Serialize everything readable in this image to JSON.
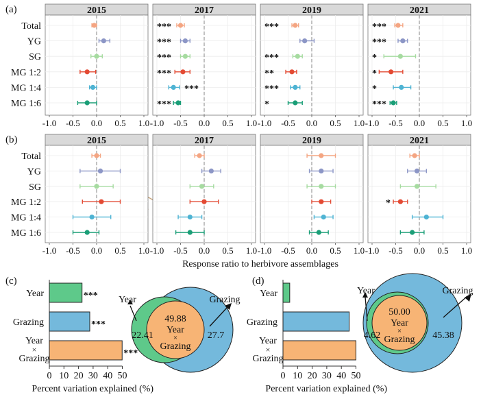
{
  "chart_data": {
    "type": "forest",
    "years": [
      "2015",
      "2017",
      "2019",
      "2021"
    ],
    "treatments": [
      "Total",
      "YG",
      "SG",
      "MG 1:2",
      "MG 1:4",
      "MG 1:6"
    ],
    "colors": [
      "#f4a582",
      "#8c96c6",
      "#a6dba0",
      "#e34a33",
      "#4eb3d3",
      "#1a9e77"
    ],
    "xlim": [
      -1.0,
      1.0
    ],
    "xticks": [
      "-1.0",
      "-0.5",
      "0.0",
      "0.5",
      "1.0"
    ],
    "xlabel": "Response ratio to herbivore assemblages",
    "panel_a": {
      "label": "(a)",
      "estimates": {
        "2015": [
          [
            -0.05,
            -0.1,
            0.0
          ],
          [
            0.15,
            0.05,
            0.28
          ],
          [
            0.0,
            -0.12,
            0.12
          ],
          [
            -0.2,
            -0.35,
            -0.02
          ],
          [
            -0.08,
            -0.15,
            0.0
          ],
          [
            -0.2,
            -0.4,
            0.0
          ]
        ],
        "2017": [
          [
            -0.5,
            -0.58,
            -0.42
          ],
          [
            -0.4,
            -0.5,
            -0.3
          ],
          [
            -0.4,
            -0.5,
            -0.3
          ],
          [
            -0.45,
            -0.62,
            -0.3
          ],
          [
            -0.65,
            -0.75,
            -0.52
          ],
          [
            -0.55,
            -0.65,
            -0.5
          ]
        ],
        "2019": [
          [
            -0.35,
            -0.42,
            -0.28
          ],
          [
            -0.15,
            -0.25,
            0.05
          ],
          [
            -0.3,
            -0.4,
            -0.2
          ],
          [
            -0.42,
            -0.55,
            -0.32
          ],
          [
            -0.35,
            -0.45,
            -0.25
          ],
          [
            -0.35,
            -0.5,
            -0.2
          ]
        ],
        "2021": [
          [
            -0.45,
            -0.52,
            -0.35
          ],
          [
            -0.35,
            -0.45,
            -0.25
          ],
          [
            -0.4,
            -0.75,
            -0.08
          ],
          [
            -0.6,
            -0.85,
            -0.35
          ],
          [
            -0.38,
            -0.55,
            -0.18
          ],
          [
            -0.55,
            -0.62,
            -0.48
          ]
        ]
      },
      "significance": {
        "2015": [
          "",
          "",
          "",
          "",
          "",
          ""
        ],
        "2017": [
          "***",
          "***",
          "***",
          "***",
          "***",
          "***"
        ],
        "2019": [
          "***",
          "",
          "***",
          "**",
          "***",
          "*"
        ],
        "2021": [
          "***",
          "***",
          "*",
          "*",
          "*",
          "***"
        ]
      }
    },
    "panel_b": {
      "label": "(b)",
      "estimates": {
        "2015": [
          [
            0.0,
            -0.1,
            0.08
          ],
          [
            0.08,
            -0.35,
            0.5
          ],
          [
            0.0,
            -0.35,
            0.35
          ],
          [
            0.1,
            -0.3,
            0.5
          ],
          [
            -0.1,
            -0.5,
            0.3
          ],
          [
            -0.2,
            -0.5,
            0.05
          ]
        ],
        "2017": [
          [
            -0.1,
            -0.2,
            0.0
          ],
          [
            0.15,
            -0.05,
            0.35
          ],
          [
            -0.05,
            -0.3,
            0.2
          ],
          [
            0.0,
            -0.3,
            0.3
          ],
          [
            -0.3,
            -0.55,
            -0.05
          ],
          [
            -0.3,
            -0.6,
            0.0
          ]
        ],
        "2019": [
          [
            0.2,
            -0.1,
            0.5
          ],
          [
            0.2,
            -0.05,
            0.45
          ],
          [
            0.2,
            -0.1,
            0.5
          ],
          [
            0.2,
            0.0,
            0.4
          ],
          [
            0.25,
            0.05,
            0.45
          ],
          [
            0.15,
            -0.05,
            0.35
          ]
        ],
        "2021": [
          [
            -0.1,
            -0.2,
            0.0
          ],
          [
            -0.05,
            -0.25,
            0.15
          ],
          [
            -0.05,
            -0.4,
            0.35
          ],
          [
            -0.4,
            -0.55,
            -0.25
          ],
          [
            0.15,
            -0.15,
            0.5
          ],
          [
            -0.15,
            -0.4,
            0.1
          ]
        ]
      },
      "significance": {
        "2015": [
          "",
          "",
          "",
          "",
          "",
          ""
        ],
        "2017": [
          "",
          "",
          "",
          "",
          "",
          ""
        ],
        "2019": [
          "",
          "",
          "",
          "",
          "",
          ""
        ],
        "2021": [
          "",
          "",
          "",
          "*",
          "",
          ""
        ]
      }
    },
    "panel_c": {
      "label": "(c)",
      "categories": [
        "Year",
        "Grazing",
        "Year × Grazing"
      ],
      "values": [
        22.41,
        27.7,
        49.88
      ],
      "significance": [
        "***",
        "***",
        "***"
      ],
      "bar_colors": [
        "#5ec98a",
        "#74b9dc",
        "#f7b475"
      ],
      "xticks": [
        "0",
        "10",
        "20",
        "30",
        "40",
        "50"
      ],
      "xlim": [
        0,
        50
      ],
      "xlabel": "Percent variation explained (%)",
      "venn": {
        "year": "22.41",
        "grazing": "27.7",
        "both": "49.88",
        "year_label": "Year",
        "grazing_label": "Grazing",
        "both_label": "Year × Grazing"
      }
    },
    "panel_d": {
      "label": "(d)",
      "categories": [
        "Year",
        "Grazing",
        "Year × Grazing"
      ],
      "values": [
        4.62,
        45.38,
        50.0
      ],
      "significance": [
        "",
        "",
        ""
      ],
      "bar_colors": [
        "#5ec98a",
        "#74b9dc",
        "#f7b475"
      ],
      "xticks": [
        "0",
        "10",
        "20",
        "30",
        "40",
        "50"
      ],
      "xlim": [
        0,
        50
      ],
      "xlabel": "Percent variation explained (%)",
      "venn": {
        "year": "4.62",
        "grazing": "45.38",
        "both": "50.00",
        "year_label": "Year",
        "grazing_label": "Grazing",
        "both_label": "Year × Grazing"
      }
    }
  }
}
